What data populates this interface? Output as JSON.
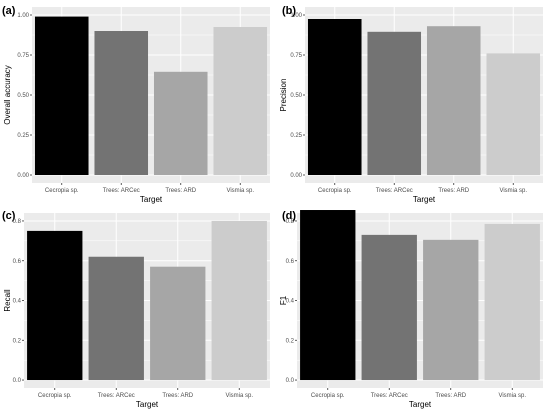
{
  "chart_data": [
    {
      "type": "bar",
      "panel_label": "(a)",
      "categories": [
        "Cecropia sp.",
        "Trees: ARCec",
        "Trees: ARD",
        "Vismia sp."
      ],
      "values": [
        0.99,
        0.9,
        0.645,
        0.925
      ],
      "colors": [
        "#000000",
        "#737373",
        "#a6a6a6",
        "#cccccc"
      ],
      "xlabel": "Target",
      "ylabel": "Overall accuracy",
      "ylim": [
        0,
        1.0
      ],
      "yticks": [
        "0.00",
        "0.25",
        "0.50",
        "0.75",
        "1.00"
      ],
      "grid": true,
      "legend": "none"
    },
    {
      "type": "bar",
      "panel_label": "(b)",
      "categories": [
        "Cecropia sp.",
        "Trees: ARCec",
        "Trees: ARD",
        "Vismia sp."
      ],
      "values": [
        0.975,
        0.895,
        0.93,
        0.76
      ],
      "colors": [
        "#000000",
        "#737373",
        "#a6a6a6",
        "#cccccc"
      ],
      "xlabel": "Target",
      "ylabel": "Precision",
      "ylim": [
        0,
        1.0
      ],
      "yticks": [
        "0.00",
        "0.25",
        "0.50",
        "0.75",
        "1.00"
      ],
      "grid": true,
      "legend": "none"
    },
    {
      "type": "bar",
      "panel_label": "(c)",
      "categories": [
        "Cecropia sp.",
        "Trees: ARCec",
        "Trees: ARD",
        "Vismia sp."
      ],
      "values": [
        0.75,
        0.62,
        0.57,
        0.8
      ],
      "colors": [
        "#000000",
        "#737373",
        "#a6a6a6",
        "#cccccc"
      ],
      "xlabel": "Target",
      "ylabel": "Recall",
      "ylim": [
        0,
        0.8
      ],
      "yticks": [
        "0.0",
        "0.2",
        "0.4",
        "0.6",
        "0.8"
      ],
      "grid": true,
      "legend": "none"
    },
    {
      "type": "bar",
      "panel_label": "(d)",
      "categories": [
        "Cecropia sp.",
        "Trees: ARCec",
        "Trees: ARD",
        "Vismia sp."
      ],
      "values": [
        0.855,
        0.73,
        0.705,
        0.785
      ],
      "colors": [
        "#000000",
        "#737373",
        "#a6a6a6",
        "#cccccc"
      ],
      "xlabel": "Target",
      "ylabel": "F1",
      "ylim": [
        0,
        0.8
      ],
      "yticks": [
        "0.0",
        "0.2",
        "0.4",
        "0.6",
        "0.8"
      ],
      "grid": true,
      "legend": "none"
    }
  ],
  "colors": {
    "panel_background": "#ebebeb",
    "gridline": "#ffffff",
    "axis_text": "#4d4d4d",
    "title_text": "#000000"
  }
}
